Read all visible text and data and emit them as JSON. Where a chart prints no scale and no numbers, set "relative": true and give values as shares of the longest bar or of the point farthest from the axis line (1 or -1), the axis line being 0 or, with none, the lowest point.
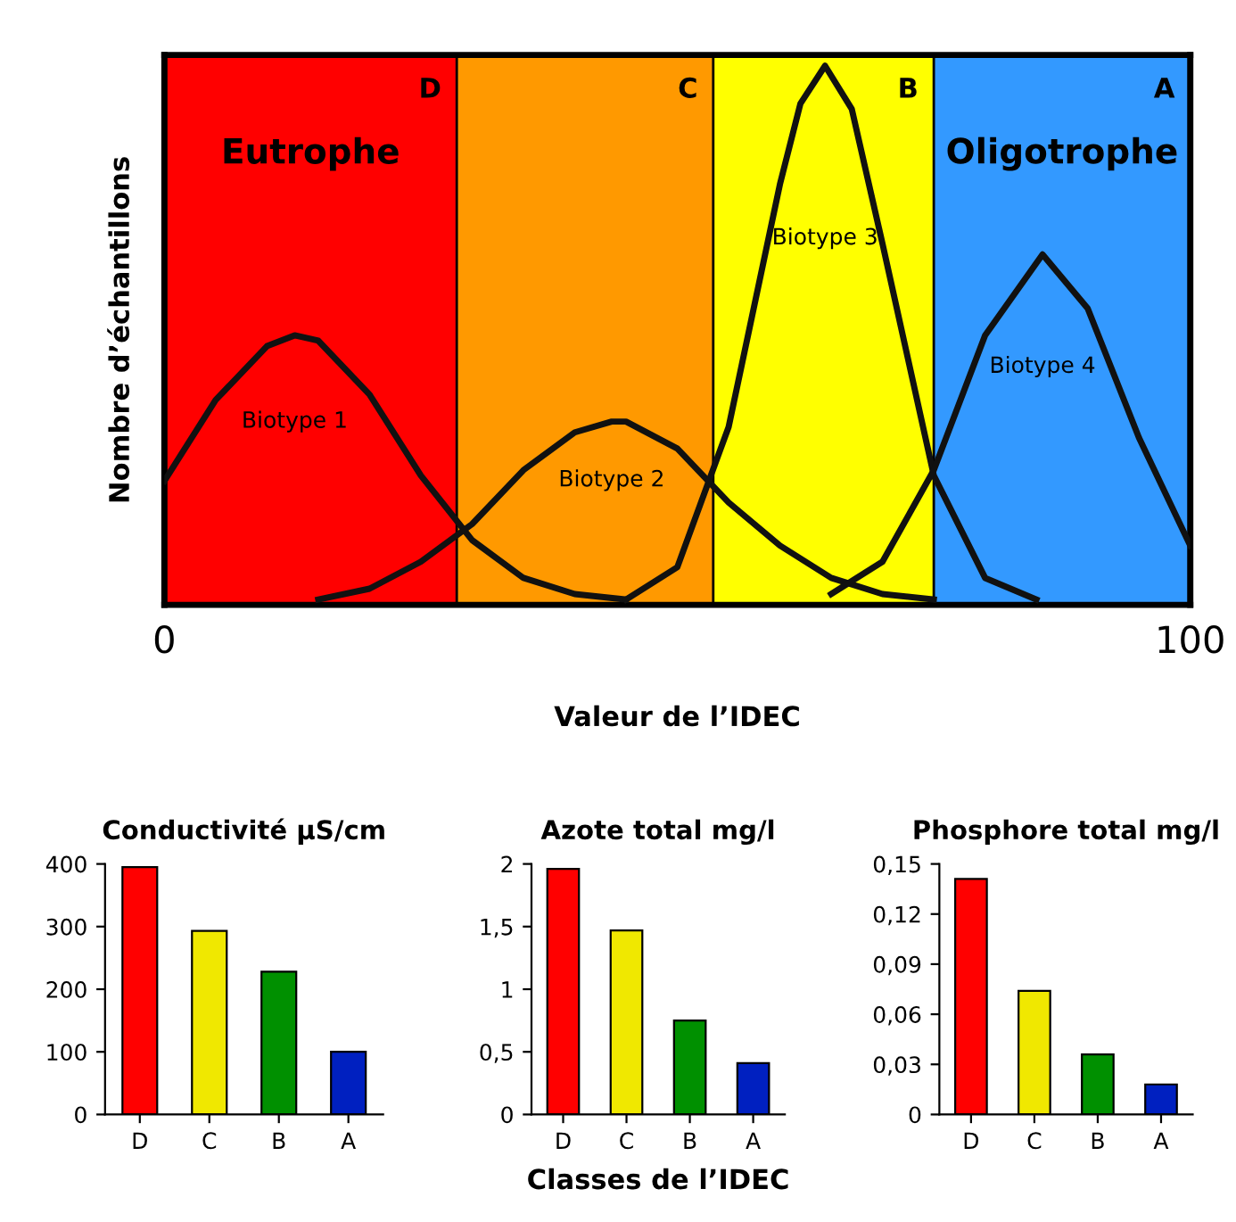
{
  "chart_data": [
    {
      "type": "line",
      "relative": true,
      "xlabel": "Valeur de l’IDEC",
      "ylabel": "Nombre d’échantillons",
      "xlim": [
        0,
        100
      ],
      "xticks": [
        0,
        100
      ],
      "legend": false,
      "grid": false,
      "marker": "none",
      "line_style": "solid",
      "bands": [
        {
          "axis": "x",
          "from": 0,
          "to": 28.5,
          "label": "D",
          "color": "#ff0000"
        },
        {
          "axis": "x",
          "from": 28.5,
          "to": 53.5,
          "label": "C",
          "color": "#ff9900"
        },
        {
          "axis": "x",
          "from": 53.5,
          "to": 75,
          "label": "B",
          "color": "#ffff00"
        },
        {
          "axis": "x",
          "from": 75,
          "to": 100,
          "label": "A",
          "color": "#3399ff"
        }
      ],
      "annotations": [
        "Eutrophe",
        "Oligotrophe"
      ],
      "series": [
        {
          "name": "Biotype 1",
          "color": "#111111",
          "x": [
            0,
            5,
            10,
            12.7,
            15,
            20,
            25,
            30,
            35,
            40,
            45
          ],
          "values": [
            0.23,
            0.38,
            0.48,
            0.5,
            0.49,
            0.39,
            0.24,
            0.12,
            0.05,
            0.02,
            0.01
          ]
        },
        {
          "name": "Biotype 2",
          "color": "#111111",
          "x": [
            15,
            20,
            25,
            30,
            35,
            40,
            43.6,
            45,
            50,
            55,
            60,
            65,
            70,
            75
          ],
          "values": [
            0.01,
            0.03,
            0.08,
            0.15,
            0.25,
            0.32,
            0.34,
            0.34,
            0.29,
            0.19,
            0.11,
            0.05,
            0.02,
            0.01
          ]
        },
        {
          "name": "Biotype 3",
          "color": "#111111",
          "x": [
            45,
            50,
            55,
            60,
            62,
            64.4,
            67,
            70,
            75,
            80,
            85
          ],
          "values": [
            0.01,
            0.07,
            0.33,
            0.78,
            0.93,
            1.0,
            0.92,
            0.67,
            0.24,
            0.05,
            0.01
          ]
        },
        {
          "name": "Biotype 4",
          "color": "#111111",
          "x": [
            65,
            70,
            75,
            80,
            85.6,
            90,
            95,
            100
          ],
          "values": [
            0.02,
            0.08,
            0.25,
            0.5,
            0.65,
            0.55,
            0.31,
            0.11
          ]
        }
      ]
    },
    {
      "type": "bar",
      "title": "Conductivité μS/cm",
      "categories": [
        "D",
        "C",
        "B",
        "A"
      ],
      "colors": [
        "#ff0000",
        "#f0e800",
        "#009000",
        "#0020c0"
      ],
      "values": [
        395,
        293,
        228,
        100
      ],
      "ylim": [
        0,
        400
      ],
      "yticks": [
        0,
        100,
        200,
        300,
        400
      ],
      "grid": false
    },
    {
      "type": "bar",
      "title": "Azote total mg/l",
      "xlabel": "Classes de l’IDEC",
      "categories": [
        "D",
        "C",
        "B",
        "A"
      ],
      "colors": [
        "#ff0000",
        "#f0e800",
        "#009000",
        "#0020c0"
      ],
      "values": [
        1.96,
        1.47,
        0.75,
        0.41
      ],
      "ylim": [
        0,
        2
      ],
      "yticks": [
        0,
        {
          "value": 0.5,
          "label": "0,5"
        },
        1,
        {
          "value": 1.5,
          "label": "1,5"
        },
        2
      ],
      "grid": false
    },
    {
      "type": "bar",
      "title": "Phosphore total mg/l",
      "categories": [
        "D",
        "C",
        "B",
        "A"
      ],
      "colors": [
        "#ff0000",
        "#f0e800",
        "#009000",
        "#0020c0"
      ],
      "values": [
        0.141,
        0.074,
        0.036,
        0.018
      ],
      "ylim": [
        0,
        0.15
      ],
      "yticks": [
        0,
        {
          "value": 0.03,
          "label": "0,03"
        },
        {
          "value": 0.06,
          "label": "0,06"
        },
        {
          "value": 0.09,
          "label": "0,09"
        },
        {
          "value": 0.12,
          "label": "0,12"
        },
        {
          "value": 0.15,
          "label": "0,15"
        }
      ],
      "grid": false
    }
  ]
}
